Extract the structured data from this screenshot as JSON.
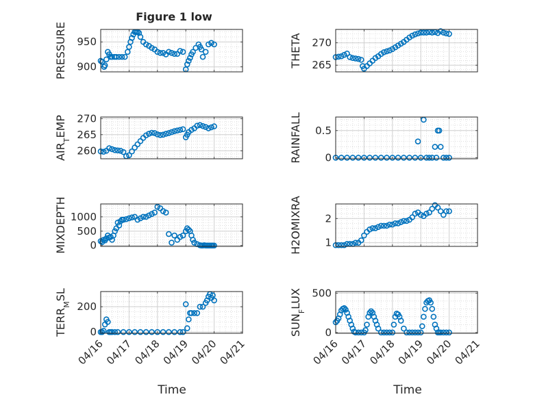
{
  "figure": {
    "title": "Figure 1 low",
    "x_axis_label": "Time",
    "x_tick_labels": [
      "04/16",
      "04/17",
      "04/18",
      "04/19",
      "04/20",
      "04/21"
    ],
    "marker_color": "#0072BD",
    "grid": "on (major + minor)"
  },
  "chart_data": [
    {
      "type": "scatter",
      "ylabel": "PRESSURE",
      "xlim": [
        0,
        5
      ],
      "ylim": [
        890,
        975
      ],
      "y_ticks": [
        900,
        950
      ],
      "x": [
        0.0,
        0.05,
        0.12,
        0.15,
        0.2,
        0.25,
        0.3,
        0.35,
        0.4,
        0.48,
        0.55,
        0.65,
        0.75,
        0.85,
        0.95,
        1.0,
        1.05,
        1.1,
        1.15,
        1.2,
        1.25,
        1.3,
        1.35,
        1.4,
        1.5,
        1.6,
        1.7,
        1.8,
        1.9,
        2.0,
        2.1,
        2.2,
        2.3,
        2.4,
        2.5,
        2.6,
        2.7,
        2.8,
        2.9,
        3.0,
        3.05,
        3.1,
        3.15,
        3.2,
        3.25,
        3.35,
        3.45,
        3.5,
        3.55,
        3.6,
        3.7,
        3.8,
        3.9,
        4.0
      ],
      "y": [
        912,
        910,
        900,
        903,
        915,
        930,
        925,
        920,
        920,
        920,
        920,
        920,
        920,
        920,
        930,
        940,
        950,
        958,
        965,
        970,
        970,
        970,
        968,
        960,
        950,
        945,
        942,
        938,
        935,
        930,
        928,
        928,
        925,
        930,
        928,
        926,
        926,
        932,
        930,
        895,
        905,
        912,
        918,
        925,
        930,
        938,
        945,
        940,
        935,
        920,
        930,
        945,
        948,
        945
      ]
    },
    {
      "type": "scatter",
      "ylabel": "THETA",
      "xlim": [
        0,
        5
      ],
      "ylim": [
        263.5,
        273
      ],
      "y_ticks": [
        265,
        270
      ],
      "x": [
        0.0,
        0.1,
        0.2,
        0.3,
        0.4,
        0.5,
        0.6,
        0.7,
        0.8,
        0.9,
        0.95,
        1.0,
        1.1,
        1.2,
        1.3,
        1.4,
        1.5,
        1.6,
        1.7,
        1.8,
        1.9,
        2.0,
        2.1,
        2.2,
        2.3,
        2.4,
        2.5,
        2.6,
        2.7,
        2.8,
        2.9,
        3.0,
        3.1,
        3.2,
        3.3,
        3.4,
        3.5,
        3.6,
        3.7,
        3.8,
        3.9,
        4.0
      ],
      "y": [
        266.8,
        266.9,
        267.0,
        267.3,
        267.6,
        266.8,
        266.6,
        266.5,
        266.4,
        266.2,
        264.8,
        264.2,
        264.8,
        265.4,
        266.0,
        266.6,
        267.0,
        267.5,
        267.9,
        268.1,
        268.3,
        268.6,
        269.0,
        269.4,
        269.8,
        270.2,
        270.7,
        271.2,
        271.6,
        271.9,
        272.1,
        272.3,
        272.3,
        272.3,
        272.4,
        272.3,
        272.4,
        272.2,
        272.6,
        272.3,
        272.1,
        272.0
      ]
    },
    {
      "type": "scatter",
      "ylabel": "AIR_TEMP",
      "xlim": [
        0,
        5
      ],
      "ylim": [
        257.5,
        270.5
      ],
      "y_ticks": [
        260,
        265,
        270
      ],
      "x": [
        0.0,
        0.1,
        0.2,
        0.3,
        0.4,
        0.5,
        0.6,
        0.7,
        0.8,
        0.9,
        1.0,
        1.1,
        1.2,
        1.3,
        1.4,
        1.5,
        1.6,
        1.7,
        1.8,
        1.9,
        2.0,
        2.1,
        2.2,
        2.3,
        2.4,
        2.5,
        2.6,
        2.7,
        2.8,
        2.9,
        3.0,
        3.05,
        3.1,
        3.2,
        3.3,
        3.4,
        3.5,
        3.6,
        3.7,
        3.8,
        3.9,
        4.0
      ],
      "y": [
        259.8,
        259.7,
        260.0,
        260.8,
        260.5,
        260.2,
        260.1,
        260.0,
        259.6,
        258.3,
        258.6,
        259.8,
        261.0,
        262.0,
        263.0,
        264.0,
        264.8,
        265.3,
        265.6,
        265.5,
        265.1,
        264.9,
        265.0,
        265.3,
        265.5,
        265.8,
        266.1,
        266.3,
        266.5,
        266.7,
        264.2,
        265.0,
        265.8,
        266.5,
        267.0,
        267.8,
        268.0,
        267.7,
        267.4,
        267.0,
        267.3,
        267.6
      ]
    },
    {
      "type": "scatter",
      "ylabel": "RAINFALL",
      "xlim": [
        0,
        5
      ],
      "ylim": [
        -0.02,
        0.75
      ],
      "y_ticks": [
        0,
        0.5
      ],
      "x": [
        0.0,
        0.2,
        0.4,
        0.6,
        0.8,
        1.0,
        1.2,
        1.4,
        1.6,
        1.8,
        2.0,
        2.2,
        2.4,
        2.6,
        2.8,
        2.9,
        3.0,
        3.1,
        3.2,
        3.3,
        3.4,
        3.5,
        3.55,
        3.6,
        3.65,
        3.7,
        3.8,
        3.9,
        4.0
      ],
      "y": [
        0,
        0,
        0,
        0,
        0,
        0,
        0,
        0,
        0,
        0,
        0,
        0,
        0,
        0,
        0,
        0.3,
        0,
        0.7,
        0,
        0,
        0,
        0.2,
        0,
        0.5,
        0.5,
        0.2,
        0,
        0,
        0
      ]
    },
    {
      "type": "scatter",
      "ylabel": "MIXDEPTH",
      "xlim": [
        0,
        5
      ],
      "ylim": [
        -30,
        1450
      ],
      "y_ticks": [
        0,
        500,
        1000
      ],
      "x": [
        0.0,
        0.05,
        0.1,
        0.15,
        0.2,
        0.25,
        0.3,
        0.35,
        0.4,
        0.45,
        0.5,
        0.55,
        0.6,
        0.65,
        0.7,
        0.75,
        0.8,
        0.9,
        1.0,
        1.1,
        1.2,
        1.3,
        1.4,
        1.5,
        1.6,
        1.7,
        1.8,
        1.9,
        2.0,
        2.1,
        2.2,
        2.3,
        2.4,
        2.5,
        2.6,
        2.7,
        2.8,
        2.9,
        3.0,
        3.05,
        3.1,
        3.15,
        3.2,
        3.25,
        3.3,
        3.4,
        3.5,
        3.55,
        3.6,
        3.65,
        3.7,
        3.75,
        3.8,
        3.85,
        3.9,
        3.95,
        4.0
      ],
      "y": [
        150,
        120,
        200,
        180,
        250,
        350,
        280,
        300,
        200,
        350,
        500,
        600,
        800,
        700,
        850,
        900,
        900,
        920,
        950,
        980,
        1000,
        900,
        950,
        1000,
        1000,
        1050,
        1100,
        1150,
        1350,
        1300,
        1200,
        1150,
        400,
        100,
        350,
        200,
        300,
        350,
        500,
        600,
        550,
        500,
        350,
        200,
        100,
        50,
        10,
        0,
        0,
        10,
        0,
        0,
        0,
        0,
        0,
        0,
        0
      ]
    },
    {
      "type": "scatter",
      "ylabel": "H2OMIXRA",
      "xlim": [
        0,
        5
      ],
      "ylim": [
        0.85,
        2.6
      ],
      "y_ticks": [
        1,
        2
      ],
      "x": [
        0.0,
        0.1,
        0.2,
        0.3,
        0.4,
        0.5,
        0.6,
        0.7,
        0.8,
        0.9,
        1.0,
        1.1,
        1.2,
        1.3,
        1.4,
        1.5,
        1.6,
        1.7,
        1.8,
        1.9,
        2.0,
        2.1,
        2.2,
        2.3,
        2.4,
        2.5,
        2.6,
        2.7,
        2.8,
        2.9,
        3.0,
        3.1,
        3.2,
        3.3,
        3.4,
        3.5,
        3.6,
        3.7,
        3.8,
        3.9,
        4.0
      ],
      "y": [
        0.9,
        0.9,
        0.9,
        0.9,
        0.95,
        0.95,
        0.95,
        1.0,
        1.0,
        1.1,
        1.3,
        1.45,
        1.55,
        1.6,
        1.6,
        1.65,
        1.7,
        1.7,
        1.7,
        1.75,
        1.75,
        1.8,
        1.8,
        1.85,
        1.9,
        1.9,
        1.95,
        2.05,
        2.2,
        2.25,
        2.15,
        2.1,
        2.2,
        2.25,
        2.4,
        2.55,
        2.45,
        2.3,
        2.15,
        2.3,
        2.3
      ]
    },
    {
      "type": "scatter",
      "ylabel": "TERR_MSL",
      "xlim": [
        0,
        5
      ],
      "ylim": [
        -10,
        320
      ],
      "y_ticks": [
        0,
        200
      ],
      "x": [
        0.0,
        0.05,
        0.1,
        0.15,
        0.2,
        0.25,
        0.3,
        0.35,
        0.4,
        0.5,
        0.6,
        0.8,
        1.0,
        1.2,
        1.4,
        1.6,
        1.8,
        2.0,
        2.2,
        2.4,
        2.6,
        2.8,
        2.9,
        3.0,
        3.05,
        3.1,
        3.15,
        3.2,
        3.3,
        3.4,
        3.5,
        3.6,
        3.7,
        3.75,
        3.8,
        3.85,
        3.9,
        3.95,
        4.0
      ],
      "y": [
        0,
        0,
        10,
        60,
        100,
        80,
        0,
        0,
        0,
        0,
        0,
        0,
        0,
        0,
        0,
        0,
        0,
        0,
        0,
        0,
        0,
        0,
        0,
        220,
        30,
        100,
        150,
        150,
        150,
        150,
        200,
        200,
        230,
        250,
        280,
        300,
        270,
        290,
        250
      ]
    },
    {
      "type": "scatter",
      "ylabel": "SUN_FLUX",
      "xlim": [
        0,
        5
      ],
      "ylim": [
        -10,
        520
      ],
      "y_ticks": [
        0,
        500
      ],
      "x": [
        0.0,
        0.05,
        0.1,
        0.15,
        0.2,
        0.25,
        0.3,
        0.35,
        0.4,
        0.45,
        0.5,
        0.55,
        0.6,
        0.65,
        0.7,
        0.8,
        0.9,
        1.0,
        1.05,
        1.1,
        1.15,
        1.2,
        1.25,
        1.3,
        1.35,
        1.4,
        1.45,
        1.5,
        1.6,
        1.7,
        1.8,
        1.9,
        2.0,
        2.05,
        2.1,
        2.15,
        2.2,
        2.25,
        2.3,
        2.4,
        2.5,
        2.6,
        2.7,
        2.8,
        2.9,
        3.0,
        3.05,
        3.1,
        3.15,
        3.2,
        3.25,
        3.3,
        3.35,
        3.4,
        3.45,
        3.5,
        3.55,
        3.6,
        3.65,
        3.7,
        3.8,
        3.9,
        4.0
      ],
      "y": [
        130,
        150,
        180,
        230,
        280,
        300,
        310,
        290,
        250,
        200,
        150,
        100,
        50,
        10,
        0,
        0,
        0,
        0,
        30,
        100,
        200,
        250,
        270,
        250,
        200,
        150,
        100,
        50,
        0,
        0,
        0,
        0,
        0,
        100,
        200,
        240,
        230,
        200,
        150,
        50,
        0,
        0,
        0,
        0,
        0,
        0,
        80,
        200,
        300,
        380,
        400,
        410,
        380,
        300,
        200,
        100,
        50,
        0,
        0,
        0,
        0,
        0,
        0
      ]
    }
  ]
}
